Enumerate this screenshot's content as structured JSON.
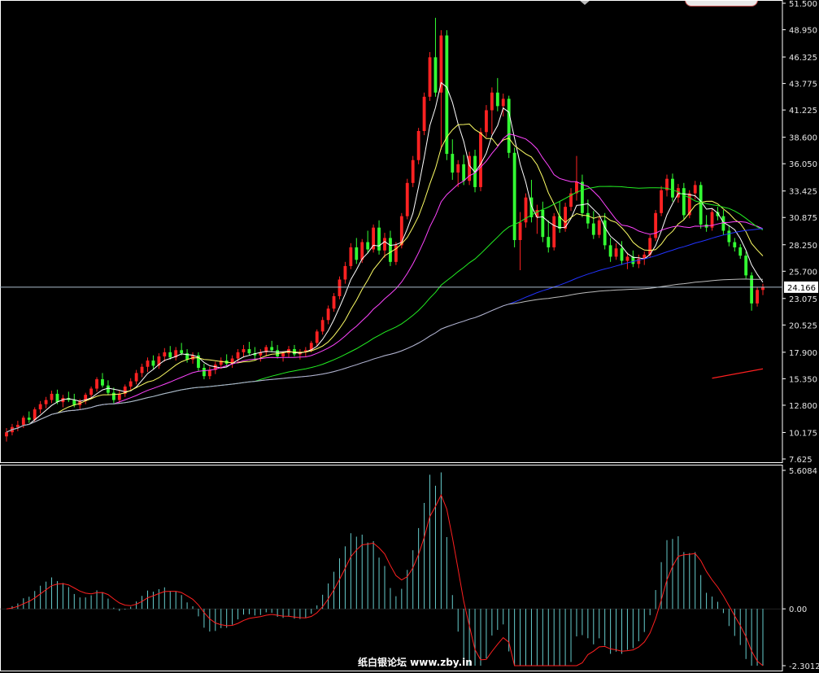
{
  "chart_data": [
    {
      "type": "candlestick",
      "title": "",
      "price_axis_ticks": [
        "51.500",
        "48.950",
        "46.325",
        "43.775",
        "41.225",
        "38.600",
        "36.050",
        "33.425",
        "30.875",
        "28.250",
        "25.700",
        "23.075",
        "20.525",
        "17.900",
        "15.350",
        "12.800",
        "10.175",
        "7.625"
      ],
      "ylim": [
        7.625,
        51.5
      ],
      "current_price": "24.166",
      "candles": [
        [
          9.8,
          10.6,
          9.3,
          10.2
        ],
        [
          10.2,
          11.0,
          9.9,
          10.7
        ],
        [
          10.7,
          11.3,
          10.3,
          10.9
        ],
        [
          10.9,
          11.8,
          10.6,
          11.6
        ],
        [
          11.6,
          12.2,
          11.1,
          11.4
        ],
        [
          11.4,
          12.6,
          11.2,
          12.4
        ],
        [
          12.4,
          13.2,
          12.0,
          12.9
        ],
        [
          12.9,
          13.6,
          12.5,
          13.3
        ],
        [
          13.3,
          14.2,
          13.0,
          13.9
        ],
        [
          13.9,
          14.3,
          12.9,
          13.1
        ],
        [
          13.1,
          13.8,
          12.6,
          13.5
        ],
        [
          13.5,
          14.1,
          13.1,
          13.3
        ],
        [
          13.3,
          13.9,
          12.6,
          12.8
        ],
        [
          12.8,
          13.4,
          12.4,
          13.2
        ],
        [
          13.2,
          14.0,
          12.9,
          13.8
        ],
        [
          13.8,
          14.6,
          13.5,
          14.4
        ],
        [
          14.4,
          15.5,
          14.1,
          15.3
        ],
        [
          15.3,
          15.9,
          14.5,
          14.7
        ],
        [
          14.7,
          15.2,
          13.8,
          14.0
        ],
        [
          14.0,
          14.5,
          13.0,
          13.3
        ],
        [
          13.3,
          14.2,
          13.0,
          13.9
        ],
        [
          13.9,
          14.8,
          13.6,
          14.6
        ],
        [
          14.6,
          15.4,
          14.3,
          15.1
        ],
        [
          15.1,
          16.2,
          14.8,
          15.9
        ],
        [
          15.9,
          16.8,
          15.5,
          16.5
        ],
        [
          16.5,
          17.4,
          16.0,
          17.1
        ],
        [
          17.1,
          17.6,
          16.3,
          16.6
        ],
        [
          16.6,
          17.8,
          16.3,
          17.5
        ],
        [
          17.5,
          18.3,
          17.0,
          17.9
        ],
        [
          17.9,
          18.5,
          17.2,
          17.4
        ],
        [
          17.4,
          18.4,
          17.1,
          18.1
        ],
        [
          18.1,
          18.8,
          17.6,
          17.8
        ],
        [
          17.8,
          18.2,
          16.9,
          17.2
        ],
        [
          17.2,
          17.9,
          16.8,
          17.6
        ],
        [
          17.6,
          17.9,
          16.1,
          16.4
        ],
        [
          16.4,
          16.8,
          15.3,
          15.6
        ],
        [
          15.6,
          16.5,
          15.3,
          16.2
        ],
        [
          16.2,
          17.0,
          15.8,
          16.7
        ],
        [
          16.7,
          17.4,
          16.3,
          17.1
        ],
        [
          17.1,
          17.7,
          16.5,
          16.8
        ],
        [
          16.8,
          17.6,
          16.4,
          17.3
        ],
        [
          17.3,
          18.2,
          16.9,
          17.9
        ],
        [
          17.9,
          18.6,
          17.4,
          18.2
        ],
        [
          18.2,
          18.9,
          17.6,
          17.8
        ],
        [
          17.8,
          18.4,
          17.1,
          17.6
        ],
        [
          17.6,
          18.2,
          17.0,
          17.9
        ],
        [
          17.9,
          18.6,
          17.5,
          18.4
        ],
        [
          18.4,
          19.0,
          17.9,
          18.1
        ],
        [
          18.1,
          18.6,
          17.3,
          17.5
        ],
        [
          17.5,
          18.0,
          17.0,
          17.8
        ],
        [
          17.8,
          18.5,
          17.4,
          18.2
        ],
        [
          18.2,
          18.6,
          17.5,
          17.7
        ],
        [
          17.7,
          18.2,
          17.2,
          17.9
        ],
        [
          17.9,
          18.4,
          17.5,
          18.1
        ],
        [
          18.1,
          19.0,
          17.9,
          18.8
        ],
        [
          18.8,
          20.1,
          18.5,
          19.9
        ],
        [
          19.9,
          21.3,
          19.6,
          21.0
        ],
        [
          21.0,
          22.4,
          20.6,
          22.1
        ],
        [
          22.1,
          23.6,
          21.8,
          23.3
        ],
        [
          23.3,
          25.2,
          23.0,
          24.9
        ],
        [
          24.9,
          26.6,
          24.5,
          26.2
        ],
        [
          26.2,
          28.4,
          25.9,
          28.0
        ],
        [
          28.0,
          28.9,
          26.4,
          26.8
        ],
        [
          26.8,
          28.8,
          26.5,
          28.5
        ],
        [
          28.5,
          29.6,
          27.4,
          27.8
        ],
        [
          27.8,
          30.2,
          27.5,
          29.9
        ],
        [
          29.9,
          30.6,
          27.3,
          27.7
        ],
        [
          27.7,
          29.4,
          27.0,
          28.9
        ],
        [
          28.9,
          29.6,
          26.2,
          26.6
        ],
        [
          26.6,
          28.5,
          26.3,
          28.2
        ],
        [
          28.2,
          31.3,
          27.9,
          31.0
        ],
        [
          31.0,
          34.6,
          30.7,
          34.2
        ],
        [
          34.2,
          36.8,
          33.8,
          36.4
        ],
        [
          36.4,
          39.5,
          36.0,
          39.2
        ],
        [
          39.2,
          42.9,
          38.8,
          42.5
        ],
        [
          42.5,
          46.8,
          42.1,
          46.3
        ],
        [
          46.3,
          50.1,
          42.5,
          42.9
        ],
        [
          42.9,
          48.9,
          37.4,
          48.4
        ],
        [
          48.4,
          48.9,
          36.4,
          37.0
        ],
        [
          37.0,
          38.4,
          34.5,
          35.2
        ],
        [
          35.2,
          36.4,
          33.8,
          36.0
        ],
        [
          36.0,
          36.9,
          34.0,
          34.4
        ],
        [
          34.4,
          37.2,
          34.0,
          36.8
        ],
        [
          36.8,
          37.4,
          33.3,
          33.8
        ],
        [
          33.8,
          39.5,
          33.4,
          39.1
        ],
        [
          39.1,
          41.7,
          38.6,
          41.2
        ],
        [
          41.2,
          43.4,
          38.9,
          42.9
        ],
        [
          42.9,
          44.3,
          41.1,
          41.6
        ],
        [
          41.6,
          42.8,
          40.6,
          42.3
        ],
        [
          42.3,
          42.6,
          36.6,
          37.1
        ],
        [
          37.1,
          37.6,
          28.0,
          28.7
        ],
        [
          28.7,
          31.4,
          25.8,
          30.4
        ],
        [
          30.4,
          33.2,
          29.9,
          32.8
        ],
        [
          32.8,
          34.5,
          30.4,
          30.9
        ],
        [
          30.9,
          32.1,
          29.3,
          31.6
        ],
        [
          31.6,
          32.4,
          28.5,
          29.0
        ],
        [
          29.0,
          30.6,
          27.5,
          28.0
        ],
        [
          28.0,
          31.3,
          27.7,
          31.0
        ],
        [
          31.0,
          32.4,
          29.4,
          29.8
        ],
        [
          29.8,
          32.3,
          29.5,
          31.9
        ],
        [
          31.9,
          33.7,
          31.5,
          33.2
        ],
        [
          33.2,
          36.8,
          32.5,
          34.3
        ],
        [
          34.3,
          35.0,
          30.9,
          31.3
        ],
        [
          31.3,
          32.6,
          29.8,
          30.3
        ],
        [
          30.3,
          31.5,
          28.8,
          29.2
        ],
        [
          29.2,
          30.9,
          28.9,
          30.6
        ],
        [
          30.6,
          31.3,
          27.8,
          28.2
        ],
        [
          28.2,
          28.9,
          26.6,
          27.1
        ],
        [
          27.1,
          28.4,
          26.8,
          27.9
        ],
        [
          27.9,
          28.6,
          26.3,
          26.7
        ],
        [
          26.7,
          27.5,
          25.9,
          27.1
        ],
        [
          27.1,
          27.7,
          26.1,
          26.4
        ],
        [
          26.4,
          27.3,
          26.0,
          26.9
        ],
        [
          26.9,
          27.6,
          26.3,
          27.3
        ],
        [
          27.3,
          29.2,
          27.0,
          28.9
        ],
        [
          28.9,
          31.6,
          28.6,
          31.3
        ],
        [
          31.3,
          33.9,
          31.0,
          33.5
        ],
        [
          33.5,
          35.0,
          32.9,
          34.6
        ],
        [
          34.6,
          35.1,
          32.4,
          32.8
        ],
        [
          32.8,
          34.1,
          32.3,
          33.7
        ],
        [
          33.7,
          34.2,
          30.7,
          31.1
        ],
        [
          31.1,
          33.5,
          30.8,
          33.2
        ],
        [
          33.2,
          34.4,
          32.6,
          34.0
        ],
        [
          34.0,
          34.3,
          29.8,
          30.2
        ],
        [
          30.2,
          31.1,
          29.5,
          29.9
        ],
        [
          29.9,
          31.7,
          29.6,
          31.4
        ],
        [
          31.4,
          31.9,
          30.6,
          31.0
        ],
        [
          31.0,
          31.6,
          29.2,
          29.6
        ],
        [
          29.6,
          30.1,
          28.1,
          28.5
        ],
        [
          28.5,
          28.9,
          27.6,
          28.0
        ],
        [
          28.0,
          28.3,
          26.9,
          27.2
        ],
        [
          27.2,
          27.6,
          25.0,
          25.3
        ],
        [
          25.3,
          25.6,
          21.9,
          22.6
        ],
        [
          22.6,
          24.2,
          22.3,
          23.9
        ],
        [
          23.9,
          24.5,
          23.4,
          24.2
        ]
      ],
      "macd_axis_ticks": [
        "5.6084",
        "0.00",
        "-2.3012"
      ],
      "macd_ylim": [
        -2.3012,
        5.6084
      ],
      "watermark": "纸白银论坛 www.zby.in",
      "colors": {
        "background": "#000000",
        "up_candle": "#ff2222",
        "down_candle": "#33ff33",
        "ma5": "#ffffff",
        "ma10": "#ffff66",
        "ma20": "#ff44ff",
        "ma60": "#22ee22",
        "ma120": "#2233ff",
        "ma250": "#bbbbbb",
        "macd_hist": "#66cccc",
        "signal": "#ff2020",
        "price_line": "#aabbcc",
        "extra_line": "#ff2020"
      }
    }
  ]
}
